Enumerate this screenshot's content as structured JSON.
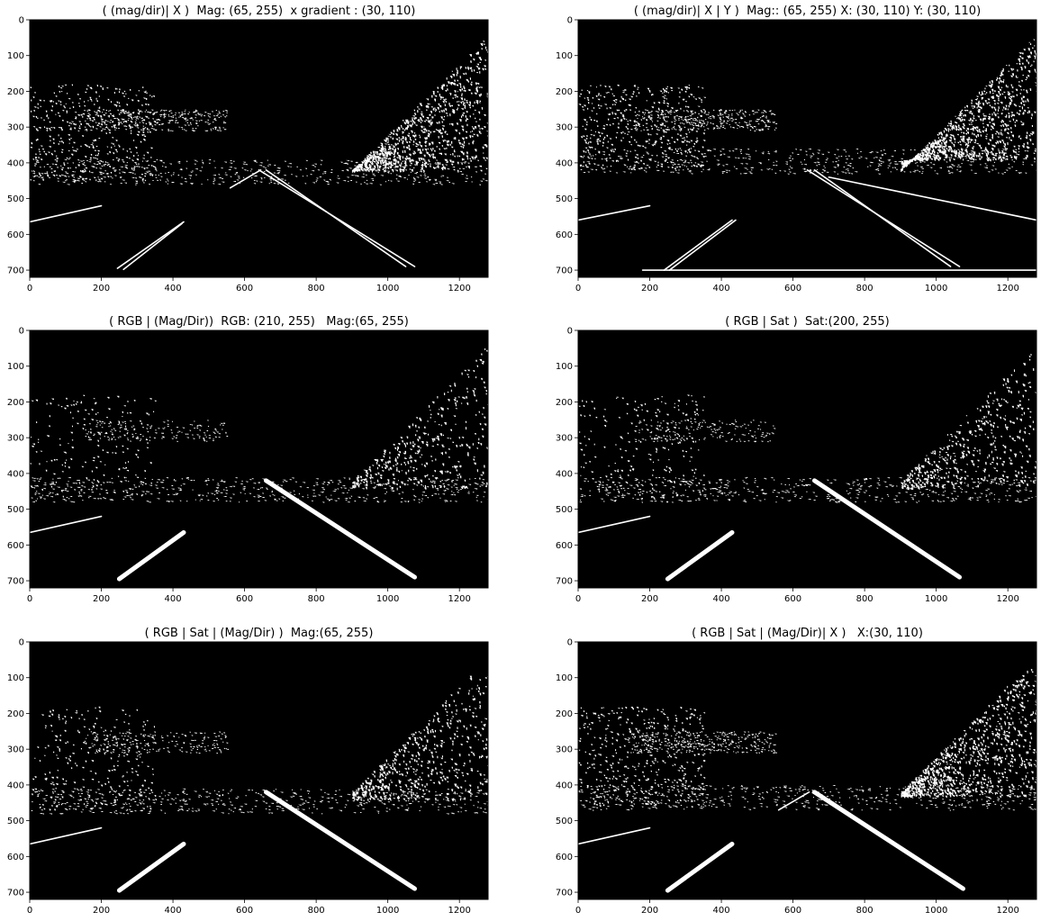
{
  "figure": {
    "background": "#ffffff",
    "panel_background": "#000000",
    "foreground": "#ffffff"
  },
  "chart_data": [
    {
      "type": "binary_image",
      "title": "( (mag/dir)| X )  Mag: (65, 255)  x gradient : (30, 110)",
      "xlim": [
        0,
        1280
      ],
      "ylim": [
        720,
        0
      ],
      "xticks": [
        0,
        200,
        400,
        600,
        800,
        1000,
        1200
      ],
      "yticks": [
        0,
        100,
        200,
        300,
        400,
        500,
        600,
        700
      ],
      "features": {
        "lane_lines": [
          {
            "x": [
              640,
              1075
            ],
            "y": [
              420,
              690
            ]
          },
          {
            "x": [
              660,
              1050
            ],
            "y": [
              420,
              690
            ]
          },
          {
            "x": [
              430,
              245
            ],
            "y": [
              565,
              695
            ]
          },
          {
            "x": [
              425,
              262
            ],
            "y": [
              570,
              698
            ]
          },
          {
            "x": [
              0,
              200
            ],
            "y": [
              565,
              520
            ]
          },
          {
            "x": [
              560,
              645
            ],
            "y": [
              470,
              420
            ]
          }
        ],
        "horizon": {
          "x": [
            0,
            1280
          ],
          "y": [
            410,
            410
          ]
        },
        "vegetation_density": 1.0
      }
    },
    {
      "type": "binary_image",
      "title": "( (mag/dir)| X | Y )  Mag:: (65, 255) X: (30, 110) Y: (30, 110)",
      "xlim": [
        0,
        1280
      ],
      "ylim": [
        720,
        0
      ],
      "xticks": [
        0,
        200,
        400,
        600,
        800,
        1000,
        1200
      ],
      "yticks": [
        0,
        100,
        200,
        300,
        400,
        500,
        600,
        700
      ],
      "features": {
        "lane_lines": [
          {
            "x": [
              640,
              1065
            ],
            "y": [
              420,
              690
            ]
          },
          {
            "x": [
              660,
              1040
            ],
            "y": [
              420,
              690
            ]
          },
          {
            "x": [
              430,
              240
            ],
            "y": [
              560,
              700
            ]
          },
          {
            "x": [
              440,
              255
            ],
            "y": [
              560,
              700
            ]
          },
          {
            "x": [
              0,
              200
            ],
            "y": [
              560,
              520
            ]
          },
          {
            "x": [
              700,
              1280
            ],
            "y": [
              440,
              560
            ]
          },
          {
            "x": [
              180,
              1280
            ],
            "y": [
              700,
              700
            ]
          }
        ],
        "horizon": {
          "x": [
            0,
            1280
          ],
          "y": [
            380,
            380
          ]
        },
        "vegetation_density": 1.0
      }
    },
    {
      "type": "binary_image",
      "title": "( RGB | (Mag/Dir))  RGB: (210, 255)   Mag:(65, 255)",
      "xlim": [
        0,
        1280
      ],
      "ylim": [
        720,
        0
      ],
      "xticks": [
        0,
        200,
        400,
        600,
        800,
        1000,
        1200
      ],
      "yticks": [
        0,
        100,
        200,
        300,
        400,
        500,
        600,
        700
      ],
      "features": {
        "lane_lines": [
          {
            "x": [
              660,
              1075
            ],
            "y": [
              420,
              690
            ],
            "thick": true
          },
          {
            "x": [
              430,
              250
            ],
            "y": [
              565,
              695
            ],
            "thick": true
          },
          {
            "x": [
              0,
              200
            ],
            "y": [
              565,
              520
            ]
          }
        ],
        "horizon": {
          "x": [
            0,
            1280
          ],
          "y": [
            430,
            430
          ]
        },
        "vegetation_density": 0.4
      }
    },
    {
      "type": "binary_image",
      "title": "( RGB | Sat )  Sat:(200, 255)",
      "xlim": [
        0,
        1280
      ],
      "ylim": [
        720,
        0
      ],
      "xticks": [
        0,
        200,
        400,
        600,
        800,
        1000,
        1200
      ],
      "yticks": [
        0,
        100,
        200,
        300,
        400,
        500,
        600,
        700
      ],
      "features": {
        "lane_lines": [
          {
            "x": [
              660,
              1065
            ],
            "y": [
              420,
              690
            ],
            "thick": true
          },
          {
            "x": [
              430,
              250
            ],
            "y": [
              565,
              695
            ],
            "thick": true
          },
          {
            "x": [
              0,
              200
            ],
            "y": [
              565,
              520
            ]
          }
        ],
        "horizon": {
          "x": [
            0,
            1280
          ],
          "y": [
            430,
            430
          ]
        },
        "vegetation_density": 0.5
      }
    },
    {
      "type": "binary_image",
      "title": "( RGB | Sat | (Mag/Dir) )  Mag:(65, 255)",
      "xlim": [
        0,
        1280
      ],
      "ylim": [
        720,
        0
      ],
      "xticks": [
        0,
        200,
        400,
        600,
        800,
        1000,
        1200
      ],
      "yticks": [
        0,
        100,
        200,
        300,
        400,
        500,
        600,
        700
      ],
      "features": {
        "lane_lines": [
          {
            "x": [
              660,
              1075
            ],
            "y": [
              420,
              690
            ],
            "thick": true
          },
          {
            "x": [
              430,
              250
            ],
            "y": [
              565,
              695
            ],
            "thick": true
          },
          {
            "x": [
              0,
              200
            ],
            "y": [
              565,
              520
            ]
          }
        ],
        "horizon": {
          "x": [
            0,
            1280
          ],
          "y": [
            430,
            430
          ]
        },
        "vegetation_density": 0.6
      }
    },
    {
      "type": "binary_image",
      "title": "( RGB | Sat | (Mag/Dir)| X )   X:(30, 110)",
      "xlim": [
        0,
        1280
      ],
      "ylim": [
        720,
        0
      ],
      "xticks": [
        0,
        200,
        400,
        600,
        800,
        1000,
        1200
      ],
      "yticks": [
        0,
        100,
        200,
        300,
        400,
        500,
        600,
        700
      ],
      "features": {
        "lane_lines": [
          {
            "x": [
              660,
              1075
            ],
            "y": [
              420,
              690
            ],
            "thick": true
          },
          {
            "x": [
              430,
              250
            ],
            "y": [
              565,
              695
            ],
            "thick": true
          },
          {
            "x": [
              0,
              200
            ],
            "y": [
              565,
              520
            ]
          },
          {
            "x": [
              560,
              645
            ],
            "y": [
              470,
              420
            ]
          }
        ],
        "horizon": {
          "x": [
            0,
            1280
          ],
          "y": [
            420,
            420
          ]
        },
        "vegetation_density": 1.0
      }
    }
  ]
}
